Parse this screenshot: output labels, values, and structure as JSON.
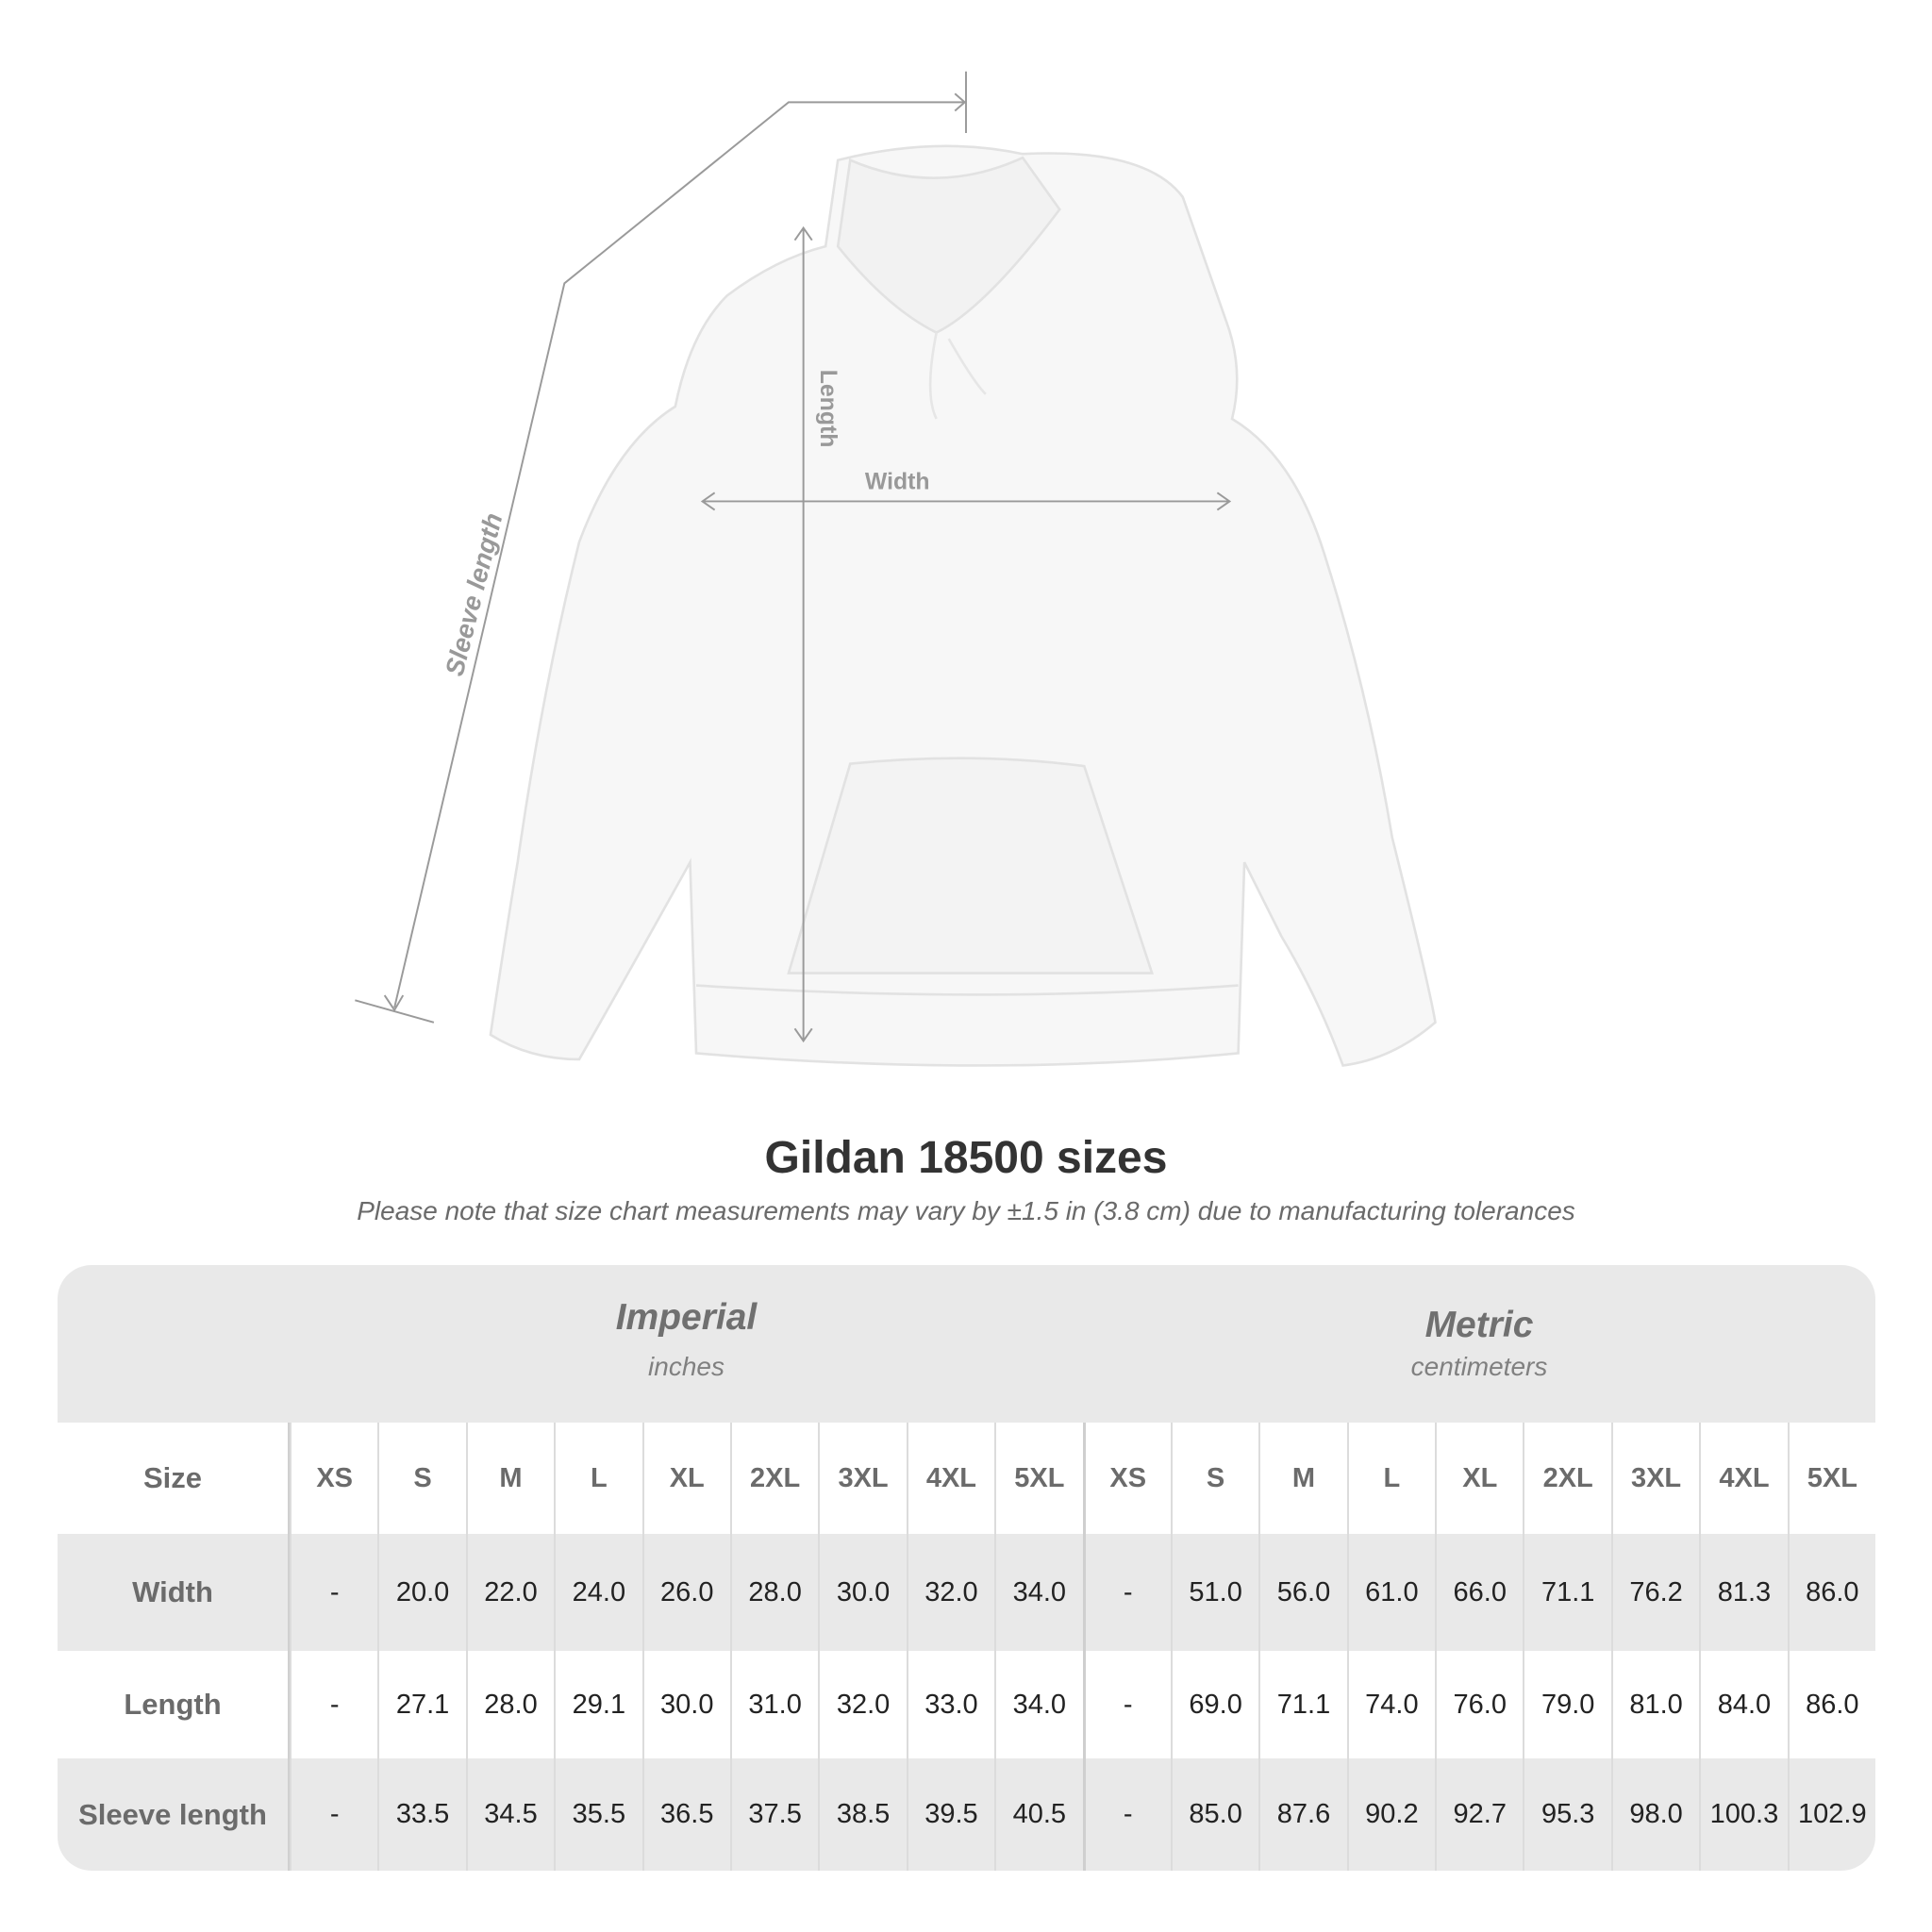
{
  "diagram": {
    "labels": {
      "length": "Length",
      "width": "Width",
      "sleeve": "Sleeve length"
    },
    "line_color": "#9a9a9a"
  },
  "title": "Gildan 18500 sizes",
  "subtitle": "Please note that size chart measurements may vary by ±1.5 in (3.8 cm) due to manufacturing tolerances",
  "table": {
    "imperial": {
      "name": "Imperial",
      "unit": "inches"
    },
    "metric": {
      "name": "Metric",
      "unit": "centimeters"
    },
    "size_label": "Size",
    "sizes": [
      "XS",
      "S",
      "M",
      "L",
      "XL",
      "2XL",
      "3XL",
      "4XL",
      "5XL"
    ],
    "rows": [
      {
        "label": "Width",
        "imperial": [
          "-",
          "20.0",
          "22.0",
          "24.0",
          "26.0",
          "28.0",
          "30.0",
          "32.0",
          "34.0"
        ],
        "metric": [
          "-",
          "51.0",
          "56.0",
          "61.0",
          "66.0",
          "71.1",
          "76.2",
          "81.3",
          "86.0"
        ]
      },
      {
        "label": "Length",
        "imperial": [
          "-",
          "27.1",
          "28.0",
          "29.1",
          "30.0",
          "31.0",
          "32.0",
          "33.0",
          "34.0"
        ],
        "metric": [
          "-",
          "69.0",
          "71.1",
          "74.0",
          "76.0",
          "79.0",
          "81.0",
          "84.0",
          "86.0"
        ]
      },
      {
        "label": "Sleeve length",
        "imperial": [
          "-",
          "33.5",
          "34.5",
          "35.5",
          "36.5",
          "37.5",
          "38.5",
          "39.5",
          "40.5"
        ],
        "metric": [
          "-",
          "85.0",
          "87.6",
          "90.2",
          "92.7",
          "95.3",
          "98.0",
          "100.3",
          "102.9"
        ]
      }
    ]
  }
}
